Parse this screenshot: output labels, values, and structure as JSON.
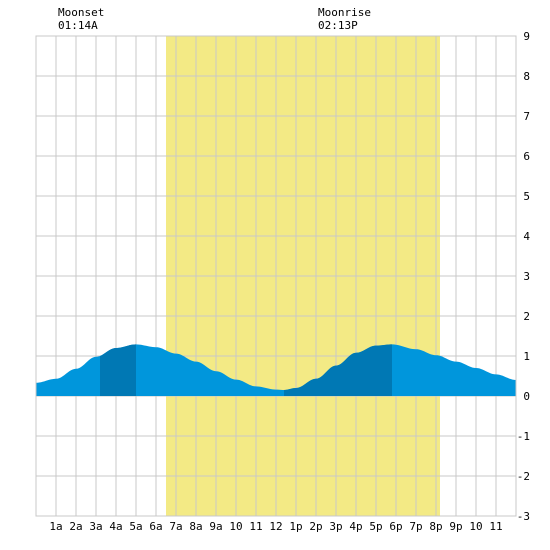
{
  "header": {
    "moonset": {
      "label": "Moonset",
      "time": "01:14A"
    },
    "moonrise": {
      "label": "Moonrise",
      "time": "02:13P"
    }
  },
  "colors": {
    "background": "#ffffff",
    "grid": "#c8c8c8",
    "daylight": "#f3ea85",
    "tide_light": "#0096dc",
    "tide_dark": "#0078b4"
  },
  "chart_data": {
    "type": "area",
    "x_unit": "hour of day",
    "xlim": [
      0,
      24
    ],
    "ylim": [
      -3,
      9
    ],
    "grid": true,
    "x_tick_labels": [
      "1a",
      "2a",
      "3a",
      "4a",
      "5a",
      "6a",
      "7a",
      "8a",
      "9a",
      "10",
      "11",
      "12",
      "1p",
      "2p",
      "3p",
      "4p",
      "5p",
      "6p",
      "7p",
      "8p",
      "9p",
      "10",
      "11"
    ],
    "y_tick_labels": [
      "-3",
      "-2",
      "-1",
      "0",
      "1",
      "2",
      "3",
      "4",
      "5",
      "6",
      "7",
      "8",
      "9"
    ],
    "daylight": {
      "start": 6.5,
      "end": 20.2
    },
    "moonset_hour": 1.233,
    "moonrise_hour": 14.217,
    "dark_bands": [
      [
        3.2,
        5.0
      ],
      [
        12.4,
        17.8
      ]
    ],
    "tide": {
      "x": [
        0,
        1,
        2,
        3,
        4,
        5,
        6,
        7,
        8,
        9,
        10,
        11,
        12,
        12.4,
        13,
        14,
        15,
        16,
        17,
        17.8,
        19,
        20,
        21,
        22,
        23,
        24
      ],
      "y": [
        0.33,
        0.43,
        0.68,
        0.98,
        1.2,
        1.29,
        1.22,
        1.06,
        0.86,
        0.62,
        0.41,
        0.24,
        0.16,
        0.15,
        0.2,
        0.43,
        0.76,
        1.08,
        1.26,
        1.29,
        1.17,
        1.02,
        0.86,
        0.7,
        0.54,
        0.4
      ]
    }
  }
}
